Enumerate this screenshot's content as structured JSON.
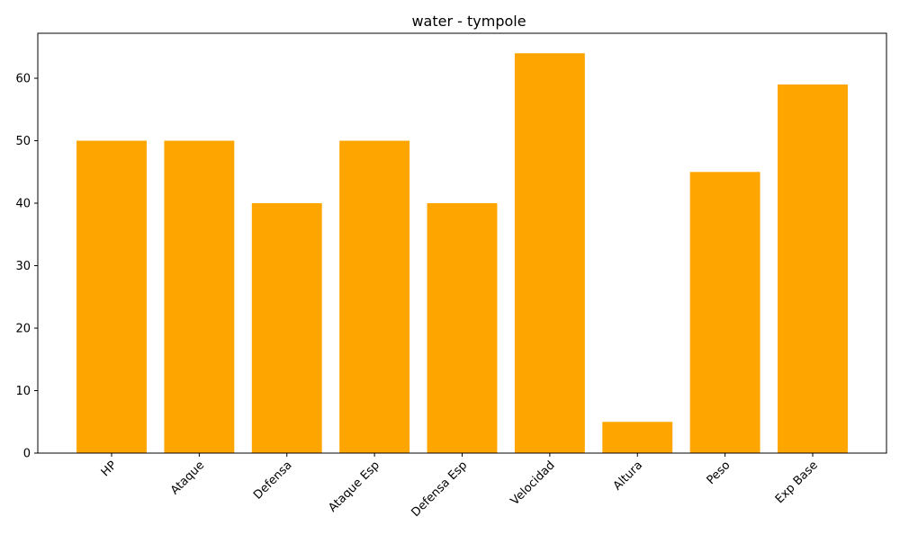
{
  "chart_data": {
    "type": "bar",
    "title": "water - tympole",
    "xlabel": "",
    "ylabel": "",
    "categories": [
      "HP",
      "Ataque",
      "Defensa",
      "Ataque Esp",
      "Defensa Esp",
      "Velocidad",
      "Altura",
      "Peso",
      "Exp Base"
    ],
    "values": [
      50,
      50,
      40,
      50,
      40,
      64,
      5,
      45,
      59
    ],
    "ylim": [
      0,
      67.2
    ],
    "yticks": [
      0,
      10,
      20,
      30,
      40,
      50,
      60
    ],
    "bar_color": "#ffa500",
    "grid": false,
    "legend": "none"
  }
}
